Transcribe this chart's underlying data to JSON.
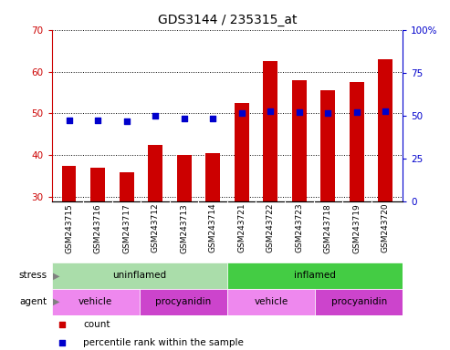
{
  "title": "GDS3144 / 235315_at",
  "samples": [
    "GSM243715",
    "GSM243716",
    "GSM243717",
    "GSM243712",
    "GSM243713",
    "GSM243714",
    "GSM243721",
    "GSM243722",
    "GSM243723",
    "GSM243718",
    "GSM243719",
    "GSM243720"
  ],
  "bar_values": [
    37.5,
    37.0,
    36.0,
    42.5,
    40.0,
    40.5,
    52.5,
    62.5,
    58.0,
    55.5,
    57.5,
    63.0
  ],
  "percentile_values": [
    47.0,
    47.0,
    46.5,
    50.0,
    48.5,
    48.5,
    51.5,
    52.5,
    52.0,
    51.5,
    52.0,
    52.5
  ],
  "bar_bottom": 29,
  "ylim_left": [
    29,
    70
  ],
  "ylim_right": [
    0,
    100
  ],
  "yticks_left": [
    30,
    40,
    50,
    60,
    70
  ],
  "yticks_right": [
    0,
    25,
    50,
    75,
    100
  ],
  "bar_color": "#cc0000",
  "dot_color": "#0000cc",
  "title_fontsize": 10,
  "stress_groups": [
    {
      "label": "uninflamed",
      "start": 0,
      "end": 6,
      "color": "#aaddaa"
    },
    {
      "label": "inflamed",
      "start": 6,
      "end": 12,
      "color": "#44cc44"
    }
  ],
  "agent_groups": [
    {
      "label": "vehicle",
      "start": 0,
      "end": 3,
      "color": "#ee88ee"
    },
    {
      "label": "procyanidin",
      "start": 3,
      "end": 6,
      "color": "#cc44cc"
    },
    {
      "label": "vehicle",
      "start": 6,
      "end": 9,
      "color": "#ee88ee"
    },
    {
      "label": "procyanidin",
      "start": 9,
      "end": 12,
      "color": "#cc44cc"
    }
  ],
  "legend_items": [
    {
      "label": "count",
      "color": "#cc0000"
    },
    {
      "label": "percentile rank within the sample",
      "color": "#0000cc"
    }
  ],
  "xlim": [
    -0.6,
    11.6
  ],
  "tick_bg_color": "#d3d3d3",
  "left_label_color": "#cc0000",
  "right_label_color": "#0000cc"
}
